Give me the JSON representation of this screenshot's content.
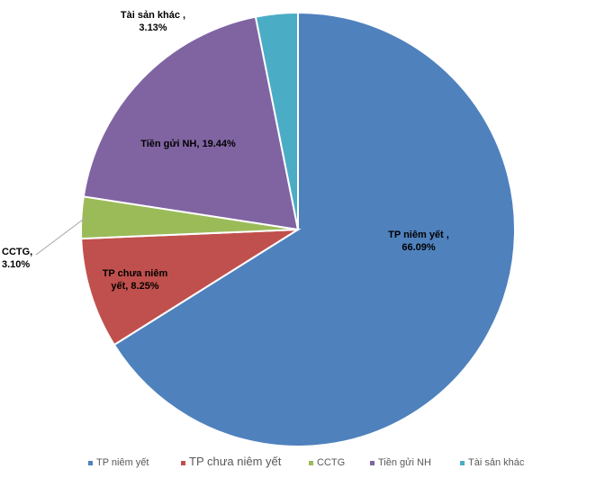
{
  "chart_data": {
    "type": "pie",
    "title": "",
    "slices": [
      {
        "name": "TP niêm yết",
        "value": 66.09,
        "label_line1": "TP niêm yết ,",
        "label_line2": "66.09%",
        "color": "#4F81BD"
      },
      {
        "name": "TP chưa niêm yết",
        "value": 8.25,
        "label_line1": "TP chưa niêm",
        "label_line2": "yết, 8.25%",
        "color": "#C0504D"
      },
      {
        "name": "CCTG",
        "value": 3.1,
        "label_line1": "CCTG,",
        "label_line2": "3.10%",
        "color": "#9BBB59"
      },
      {
        "name": "Tiền gửi NH",
        "value": 19.44,
        "label_line1": "Tiền gửi NH, 19.44%",
        "label_line2": "",
        "color": "#8064A2"
      },
      {
        "name": "Tài sản khác",
        "value": 3.13,
        "label_line1": "Tài sản khác ,",
        "label_line2": "3.13%",
        "color": "#4BACC6"
      }
    ],
    "legend_position": "bottom"
  }
}
